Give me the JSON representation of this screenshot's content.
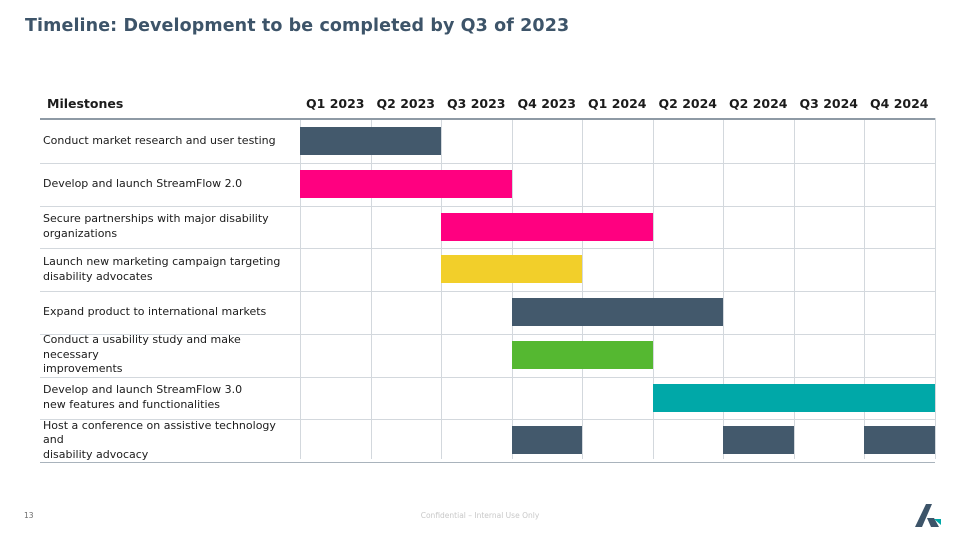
{
  "title": "Timeline: Development to be completed by Q3 of 2023",
  "header_label": "Milestones",
  "quarters": [
    "Q1 2023",
    "Q2 2023",
    "Q3 2023",
    "Q4 2023",
    "Q1 2024",
    "Q2 2024",
    "Q2 2024",
    "Q3 2024",
    "Q4 2024"
  ],
  "colors": {
    "slate": "#43596c",
    "magenta": "#ff0080",
    "yellow": "#f2cf2a",
    "green": "#55b831",
    "teal": "#00a8a8",
    "title": "#3d5469"
  },
  "milestones": [
    {
      "label": "Conduct market research and user testing",
      "bars": [
        {
          "start": 0,
          "end": 2,
          "color": "slate"
        }
      ]
    },
    {
      "label": "Develop and launch StreamFlow 2.0",
      "bars": [
        {
          "start": 0,
          "end": 3,
          "color": "magenta"
        }
      ]
    },
    {
      "label": "Secure partnerships with major disability\norganizations",
      "bars": [
        {
          "start": 2,
          "end": 5,
          "color": "magenta"
        }
      ]
    },
    {
      "label": "Launch new marketing campaign targeting\ndisability advocates",
      "bars": [
        {
          "start": 2,
          "end": 4,
          "color": "yellow"
        }
      ]
    },
    {
      "label": "Expand product to international markets",
      "bars": [
        {
          "start": 3,
          "end": 6,
          "color": "slate"
        }
      ]
    },
    {
      "label": "Conduct a usability study and make necessary\nimprovements",
      "bars": [
        {
          "start": 3,
          "end": 5,
          "color": "green"
        }
      ]
    },
    {
      "label": "Develop and launch StreamFlow 3.0\nnew features and functionalities",
      "bars": [
        {
          "start": 5,
          "end": 9,
          "color": "teal"
        }
      ]
    },
    {
      "label": "Host a conference on assistive technology and\ndisability advocacy",
      "bars": [
        {
          "start": 3,
          "end": 4,
          "color": "slate"
        },
        {
          "start": 6,
          "end": 7,
          "color": "slate"
        },
        {
          "start": 8,
          "end": 9,
          "color": "slate"
        }
      ]
    }
  ],
  "footer": {
    "page_number": "13",
    "confidential": "Confidential – Internal Use Only"
  }
}
